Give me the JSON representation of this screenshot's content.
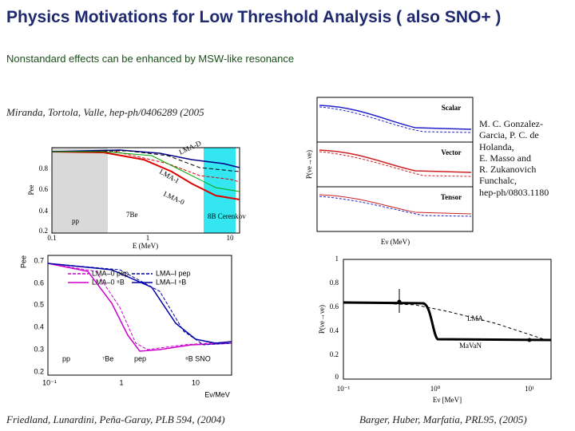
{
  "title": "Physics Motivations for Low Threshold Analysis ( also SNO+ )",
  "subtitle": "Nonstandard effects can be enhanced by MSW-like resonance",
  "figures": [
    {
      "caption": "Miranda, Tortola, Valle, hep-ph/0406289 (2005",
      "ylabel": "Pee",
      "xlabel": "E (MeV)",
      "yticks": [
        "0.8",
        "0.6",
        "0.4",
        "0.2"
      ],
      "xticks": [
        "0.1",
        "1",
        "10"
      ],
      "labels": [
        "LMA-D",
        "LMA-I",
        "LMA-0",
        "pp",
        "7Be",
        "8B Cerenkov"
      ]
    },
    {
      "reference": [
        "M. C. Gonzalez-",
        "Garcia, P. C. de",
        "Holanda,",
        "E. Masso and",
        "R. Zukanovich",
        "Funchalc,",
        "hep-ph/0803.1180"
      ],
      "panels": [
        "Scalar",
        "Vector",
        "Tensor"
      ],
      "xlabel": "Eν (MeV)",
      "ylabel": "P(νe→νe)"
    },
    {
      "caption": "Friedland, Lunardini, Peña-Garay, PLB 594, (2004)",
      "ylabel": "Pee",
      "xlabel": "Eν/MeV",
      "yticks": [
        "0.7",
        "0.6",
        "0.5",
        "0.4",
        "0.3",
        "0.2"
      ],
      "xticks": [
        "10⁻¹",
        "1",
        "10"
      ],
      "legend": [
        "LMA–0 pep",
        "LMA–I pep",
        "LMA–0 ⁸B",
        "LMA–I ⁸B"
      ],
      "labels": [
        "pp",
        "⁷Be",
        "pep",
        "⁸B SNO"
      ]
    },
    {
      "caption": "Barger, Huber, Marfatia, PRL95, (2005)",
      "ylabel": "P(νe→νe)",
      "xlabel": "Eν [MeV]",
      "yticks": [
        "1",
        "0.8",
        "0.6",
        "0.4",
        "0.2",
        "0"
      ],
      "xticks": [
        "10⁻¹",
        "10⁰",
        "10¹"
      ],
      "labels": [
        "LMA",
        "MaVaN"
      ]
    }
  ]
}
